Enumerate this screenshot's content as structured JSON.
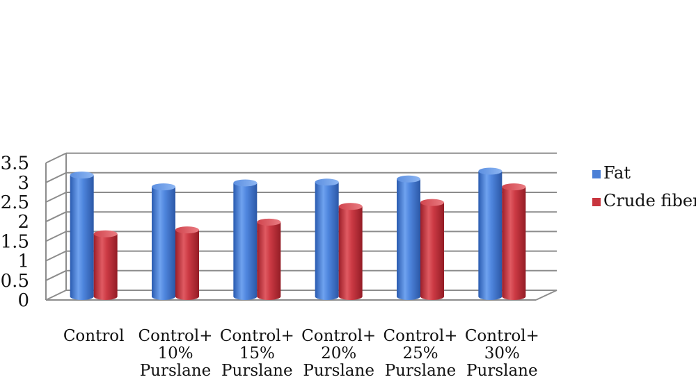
{
  "chart_data": {
    "type": "bar",
    "style": "3d-cylinder",
    "categories": [
      [
        "Control"
      ],
      [
        "Control+",
        "10%",
        "Purslane"
      ],
      [
        "Control+",
        "15%",
        "Purslane"
      ],
      [
        "Control+",
        "20%",
        "Purslane"
      ],
      [
        "Control+",
        "25%",
        "Purslane"
      ],
      [
        "Control+",
        "30%",
        "Purslane"
      ]
    ],
    "series": [
      {
        "name": "Fat",
        "values": [
          3.1,
          2.8,
          2.9,
          2.92,
          3.0,
          3.2
        ]
      },
      {
        "name": "Crude fiber",
        "values": [
          1.6,
          1.7,
          1.9,
          2.3,
          2.4,
          2.8
        ]
      }
    ],
    "y_ticks": [
      "0",
      "0.5",
      "1",
      "1.5",
      "2",
      "2.5",
      "3",
      "3.5"
    ],
    "ylim": [
      0,
      3.5
    ],
    "grid": true,
    "legend_position": "right",
    "colors": {
      "Fat": "#4a7fd6",
      "Crude fiber": "#c8353e",
      "grid": "#8c8c8c"
    }
  }
}
